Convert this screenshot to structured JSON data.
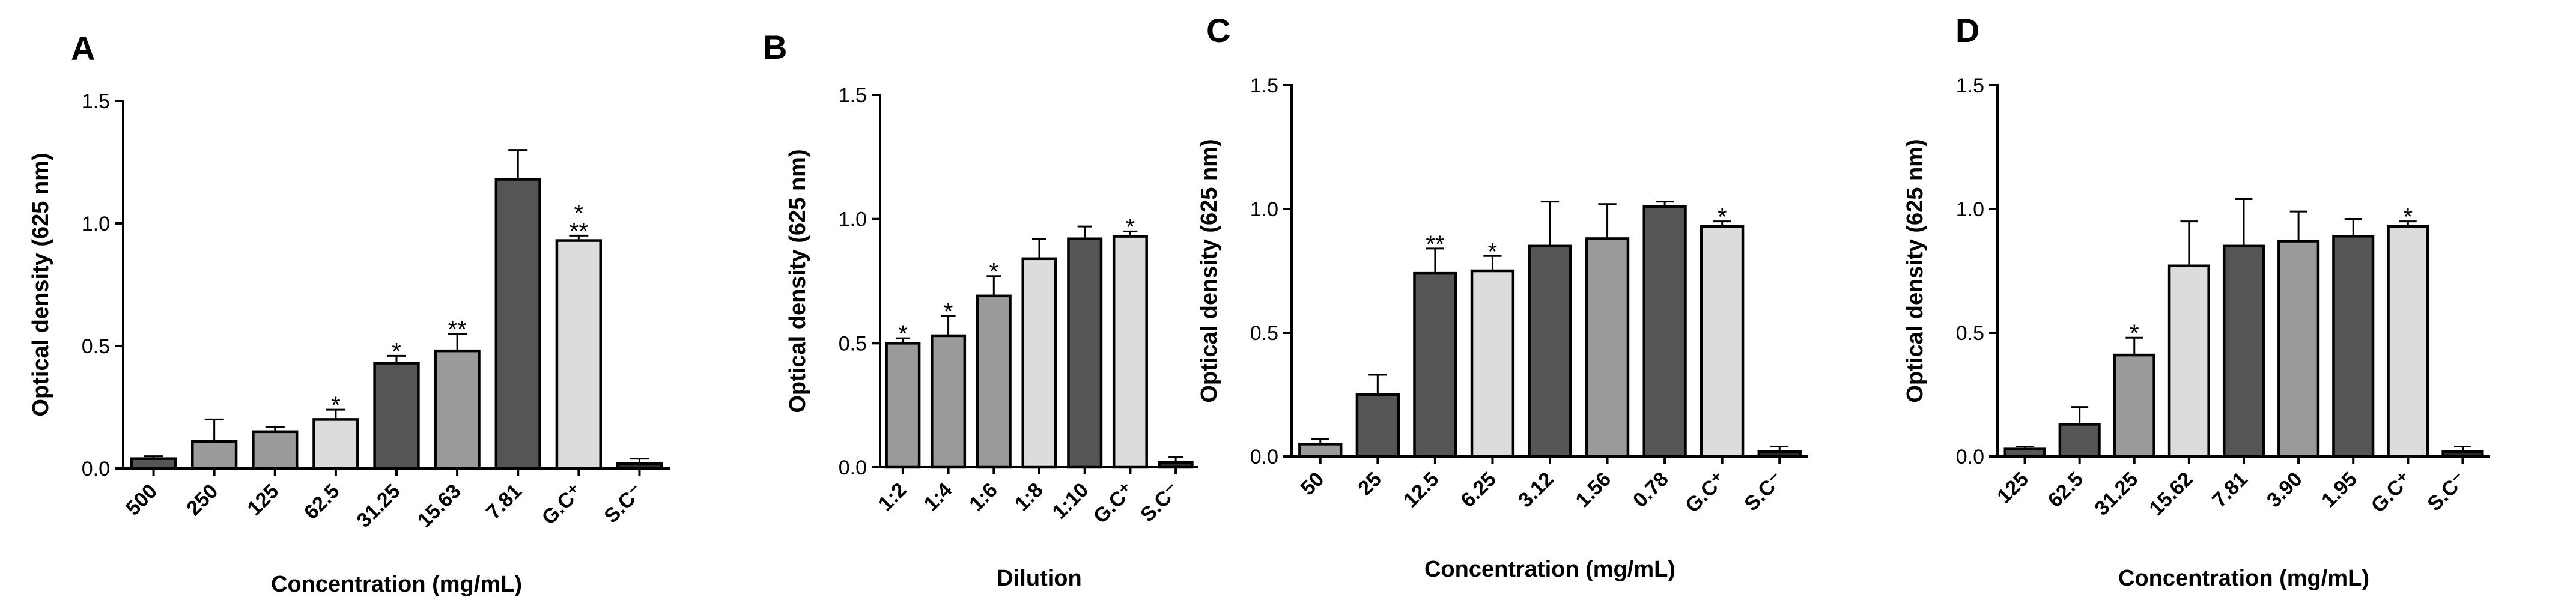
{
  "figure_title": "",
  "colors": {
    "dark": "#555555",
    "mid": "#9a9a9a",
    "light": "#dcdcdc",
    "neg": "#2a2a2a",
    "axis": "#000000"
  },
  "chart_data": [
    {
      "panel": "A",
      "type": "bar",
      "ylabel": "Optical density (625 nm)",
      "xlabel": "Concentration (mg/mL)",
      "ylim": [
        0,
        1.5
      ],
      "yticks": [
        "0.0",
        "0.5",
        "1.0",
        "1.5"
      ],
      "yticks_values": [
        0,
        0.5,
        1.0,
        1.5
      ],
      "grid": false,
      "categories": [
        "500",
        "250",
        "125",
        "62.5",
        "31.25",
        "15.63",
        "7.81",
        "G.C⁺",
        "S.C⁻"
      ],
      "values": [
        0.04,
        0.11,
        0.15,
        0.2,
        0.43,
        0.48,
        1.18,
        0.93,
        0.02
      ],
      "errors": [
        0.01,
        0.09,
        0.02,
        0.04,
        0.03,
        0.07,
        0.12,
        0.02,
        0.02
      ],
      "significance": [
        "",
        "",
        "",
        "*",
        "*",
        "**",
        "",
        "*\n**",
        ""
      ],
      "fills": [
        "dark",
        "mid",
        "mid",
        "light",
        "dark",
        "mid",
        "dark",
        "light",
        "neg"
      ]
    },
    {
      "panel": "B",
      "type": "bar",
      "ylabel": "Optical density (625 nm)",
      "xlabel": "Dilution",
      "ylim": [
        0,
        1.5
      ],
      "yticks": [
        "0.0",
        "0.5",
        "1.0",
        "1.5"
      ],
      "yticks_values": [
        0,
        0.5,
        1.0,
        1.5
      ],
      "grid": false,
      "categories": [
        "1:2",
        "1:4",
        "1:6",
        "1:8",
        "1:10",
        "G.C⁺",
        "S.C⁻"
      ],
      "values": [
        0.5,
        0.53,
        0.69,
        0.84,
        0.92,
        0.93,
        0.02
      ],
      "errors": [
        0.02,
        0.08,
        0.08,
        0.08,
        0.05,
        0.02,
        0.02
      ],
      "significance": [
        "*",
        "*",
        "*",
        "",
        "",
        "*",
        ""
      ],
      "fills": [
        "mid",
        "mid",
        "mid",
        "light",
        "dark",
        "light",
        "neg"
      ]
    },
    {
      "panel": "C",
      "type": "bar",
      "ylabel": "Optical density (625 nm)",
      "xlabel": "Concentration (mg/mL)",
      "ylim": [
        0,
        1.5
      ],
      "yticks": [
        "0.0",
        "0.5",
        "1.0",
        "1.5"
      ],
      "yticks_values": [
        0,
        0.5,
        1.0,
        1.5
      ],
      "grid": false,
      "categories": [
        "50",
        "25",
        "12.5",
        "6.25",
        "3.12",
        "1.56",
        "0.78",
        "G.C⁺",
        "S.C⁻"
      ],
      "values": [
        0.05,
        0.25,
        0.74,
        0.75,
        0.85,
        0.88,
        1.01,
        0.93,
        0.02
      ],
      "errors": [
        0.02,
        0.08,
        0.1,
        0.06,
        0.18,
        0.14,
        0.02,
        0.02,
        0.02
      ],
      "significance": [
        "",
        "",
        "**",
        "*",
        "",
        "",
        "",
        "*",
        ""
      ],
      "fills": [
        "mid",
        "dark",
        "dark",
        "light",
        "dark",
        "mid",
        "dark",
        "light",
        "neg"
      ]
    },
    {
      "panel": "D",
      "type": "bar",
      "ylabel": "Optical density (625 nm)",
      "xlabel": "Concentration (mg/mL)",
      "ylim": [
        0,
        1.5
      ],
      "yticks": [
        "0.0",
        "0.5",
        "1.0",
        "1.5"
      ],
      "yticks_values": [
        0,
        0.5,
        1.0,
        1.5
      ],
      "grid": false,
      "categories": [
        "125",
        "62.5",
        "31.25",
        "15.62",
        "7.81",
        "3.90",
        "1.95",
        "G.C⁺",
        "S.C⁻"
      ],
      "values": [
        0.03,
        0.13,
        0.41,
        0.77,
        0.85,
        0.87,
        0.89,
        0.93,
        0.02
      ],
      "errors": [
        0.01,
        0.07,
        0.07,
        0.18,
        0.19,
        0.12,
        0.07,
        0.02,
        0.02
      ],
      "significance": [
        "",
        "",
        "*",
        "",
        "",
        "",
        "",
        "*",
        ""
      ],
      "fills": [
        "dark",
        "dark",
        "mid",
        "light",
        "dark",
        "mid",
        "dark",
        "light",
        "neg"
      ]
    }
  ]
}
